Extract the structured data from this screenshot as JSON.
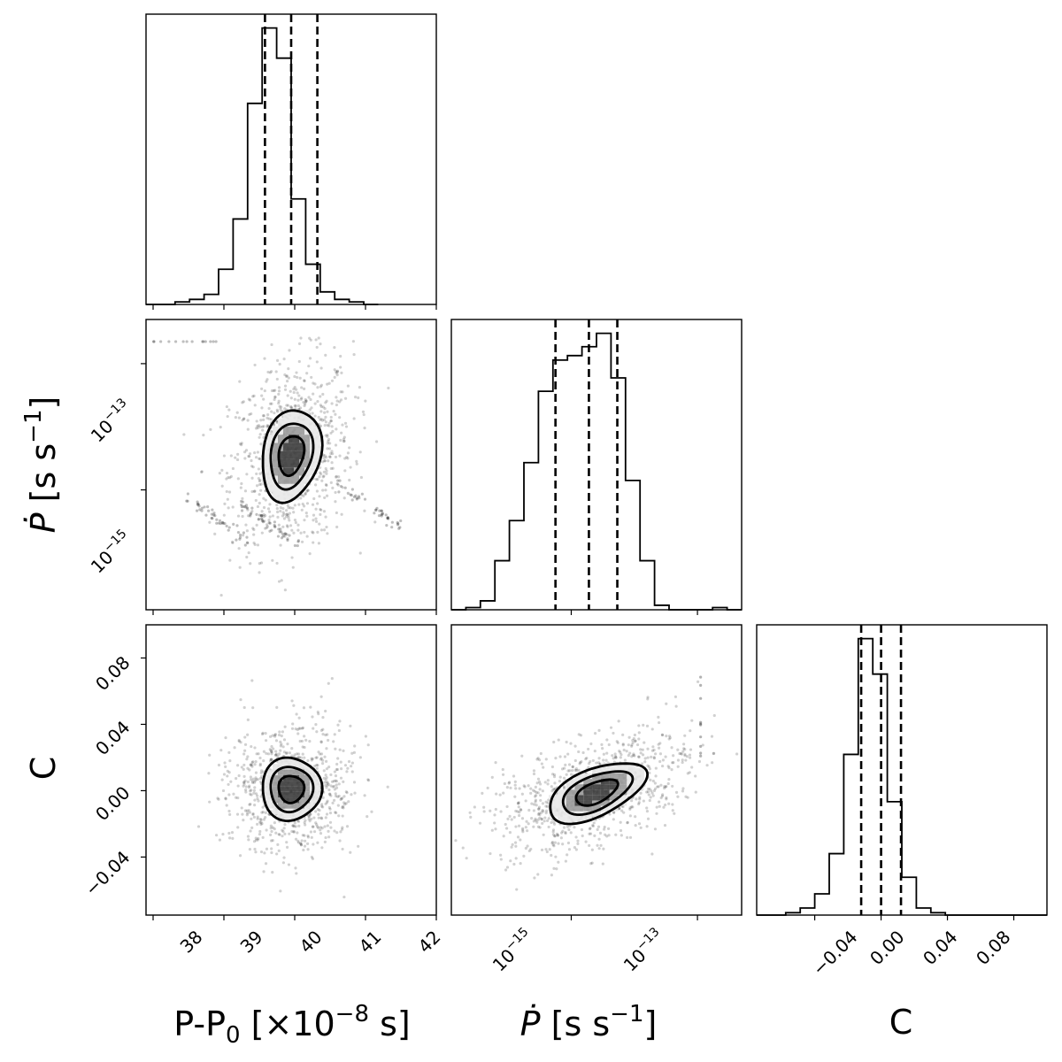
{
  "chart_data": {
    "type": "corner",
    "parameters": [
      {
        "key": "P",
        "label": "P-P",
        "label_sub": "0",
        "label_tail": " [×10",
        "label_sup": "−8",
        "label_end": " s]",
        "scale": "linear",
        "range": [
          37.9,
          42.0
        ],
        "ticks": [
          "38",
          "39",
          "40",
          "41",
          "42"
        ]
      },
      {
        "key": "Pdot",
        "label": "Ṗ",
        "label_tail": " [s s",
        "label_sup": "−1",
        "label_end": "]",
        "scale": "log",
        "range_log10": [
          -16.9,
          -12.3
        ],
        "ticks": [
          "10−15",
          "10−13"
        ]
      },
      {
        "key": "C",
        "label": "C",
        "scale": "linear",
        "range": [
          -0.075,
          0.1
        ],
        "ticks": [
          "−0.04",
          "0.00",
          "0.04",
          "0.08"
        ]
      }
    ],
    "tick_labels": {
      "P": [
        "38",
        "39",
        "40",
        "41",
        "42"
      ],
      "Pdot_base": "10",
      "Pdot_exp": [
        "−15",
        "−13"
      ],
      "C": [
        "−0.04",
        "0.00",
        "0.04",
        "0.08"
      ]
    },
    "histograms": {
      "P": {
        "bin_start": 37.9,
        "bin_width": 0.205,
        "counts": [
          0,
          0,
          1,
          2,
          4,
          14,
          34,
          80,
          110,
          98,
          42,
          16,
          5,
          2,
          1,
          0
        ],
        "quantiles": [
          39.58,
          39.95,
          40.32
        ]
      },
      "Pdot": {
        "bin_start_log10": -16.9,
        "bin_width_log10": 0.23,
        "counts": [
          0,
          1,
          4,
          22,
          40,
          66,
          98,
          112,
          114,
          118,
          124,
          104,
          58,
          22,
          2,
          0,
          0,
          0,
          1,
          0
        ],
        "quantiles_log10": [
          -15.25,
          -14.72,
          -14.27
        ]
      },
      "C": {
        "bin_start": -0.075,
        "bin_width": 0.00875,
        "counts": [
          0,
          0,
          1,
          3,
          9,
          26,
          68,
          117,
          102,
          48,
          16,
          3,
          1,
          0,
          0,
          0,
          0,
          0,
          0,
          0
        ],
        "quantiles": [
          -0.012,
          0.0,
          0.012
        ]
      }
    },
    "joint": {
      "P_Pdot": {
        "center": [
          39.95,
          -14.45
        ],
        "sd": [
          0.3,
          0.52
        ],
        "corr": 0.2
      },
      "P_C": {
        "center": [
          39.95,
          0.001
        ],
        "sd": [
          0.3,
          0.0135
        ],
        "corr": 0.0
      },
      "Pdot_C": {
        "center": [
          -14.6,
          -0.001
        ],
        "sd": [
          0.55,
          0.013
        ],
        "corr": 0.55
      }
    },
    "colors": {
      "ink": "#000000",
      "fill_light": "#e8e8e8",
      "fill_mid": "#9a9a9a",
      "fill_dark": "#3c3c3c"
    }
  }
}
